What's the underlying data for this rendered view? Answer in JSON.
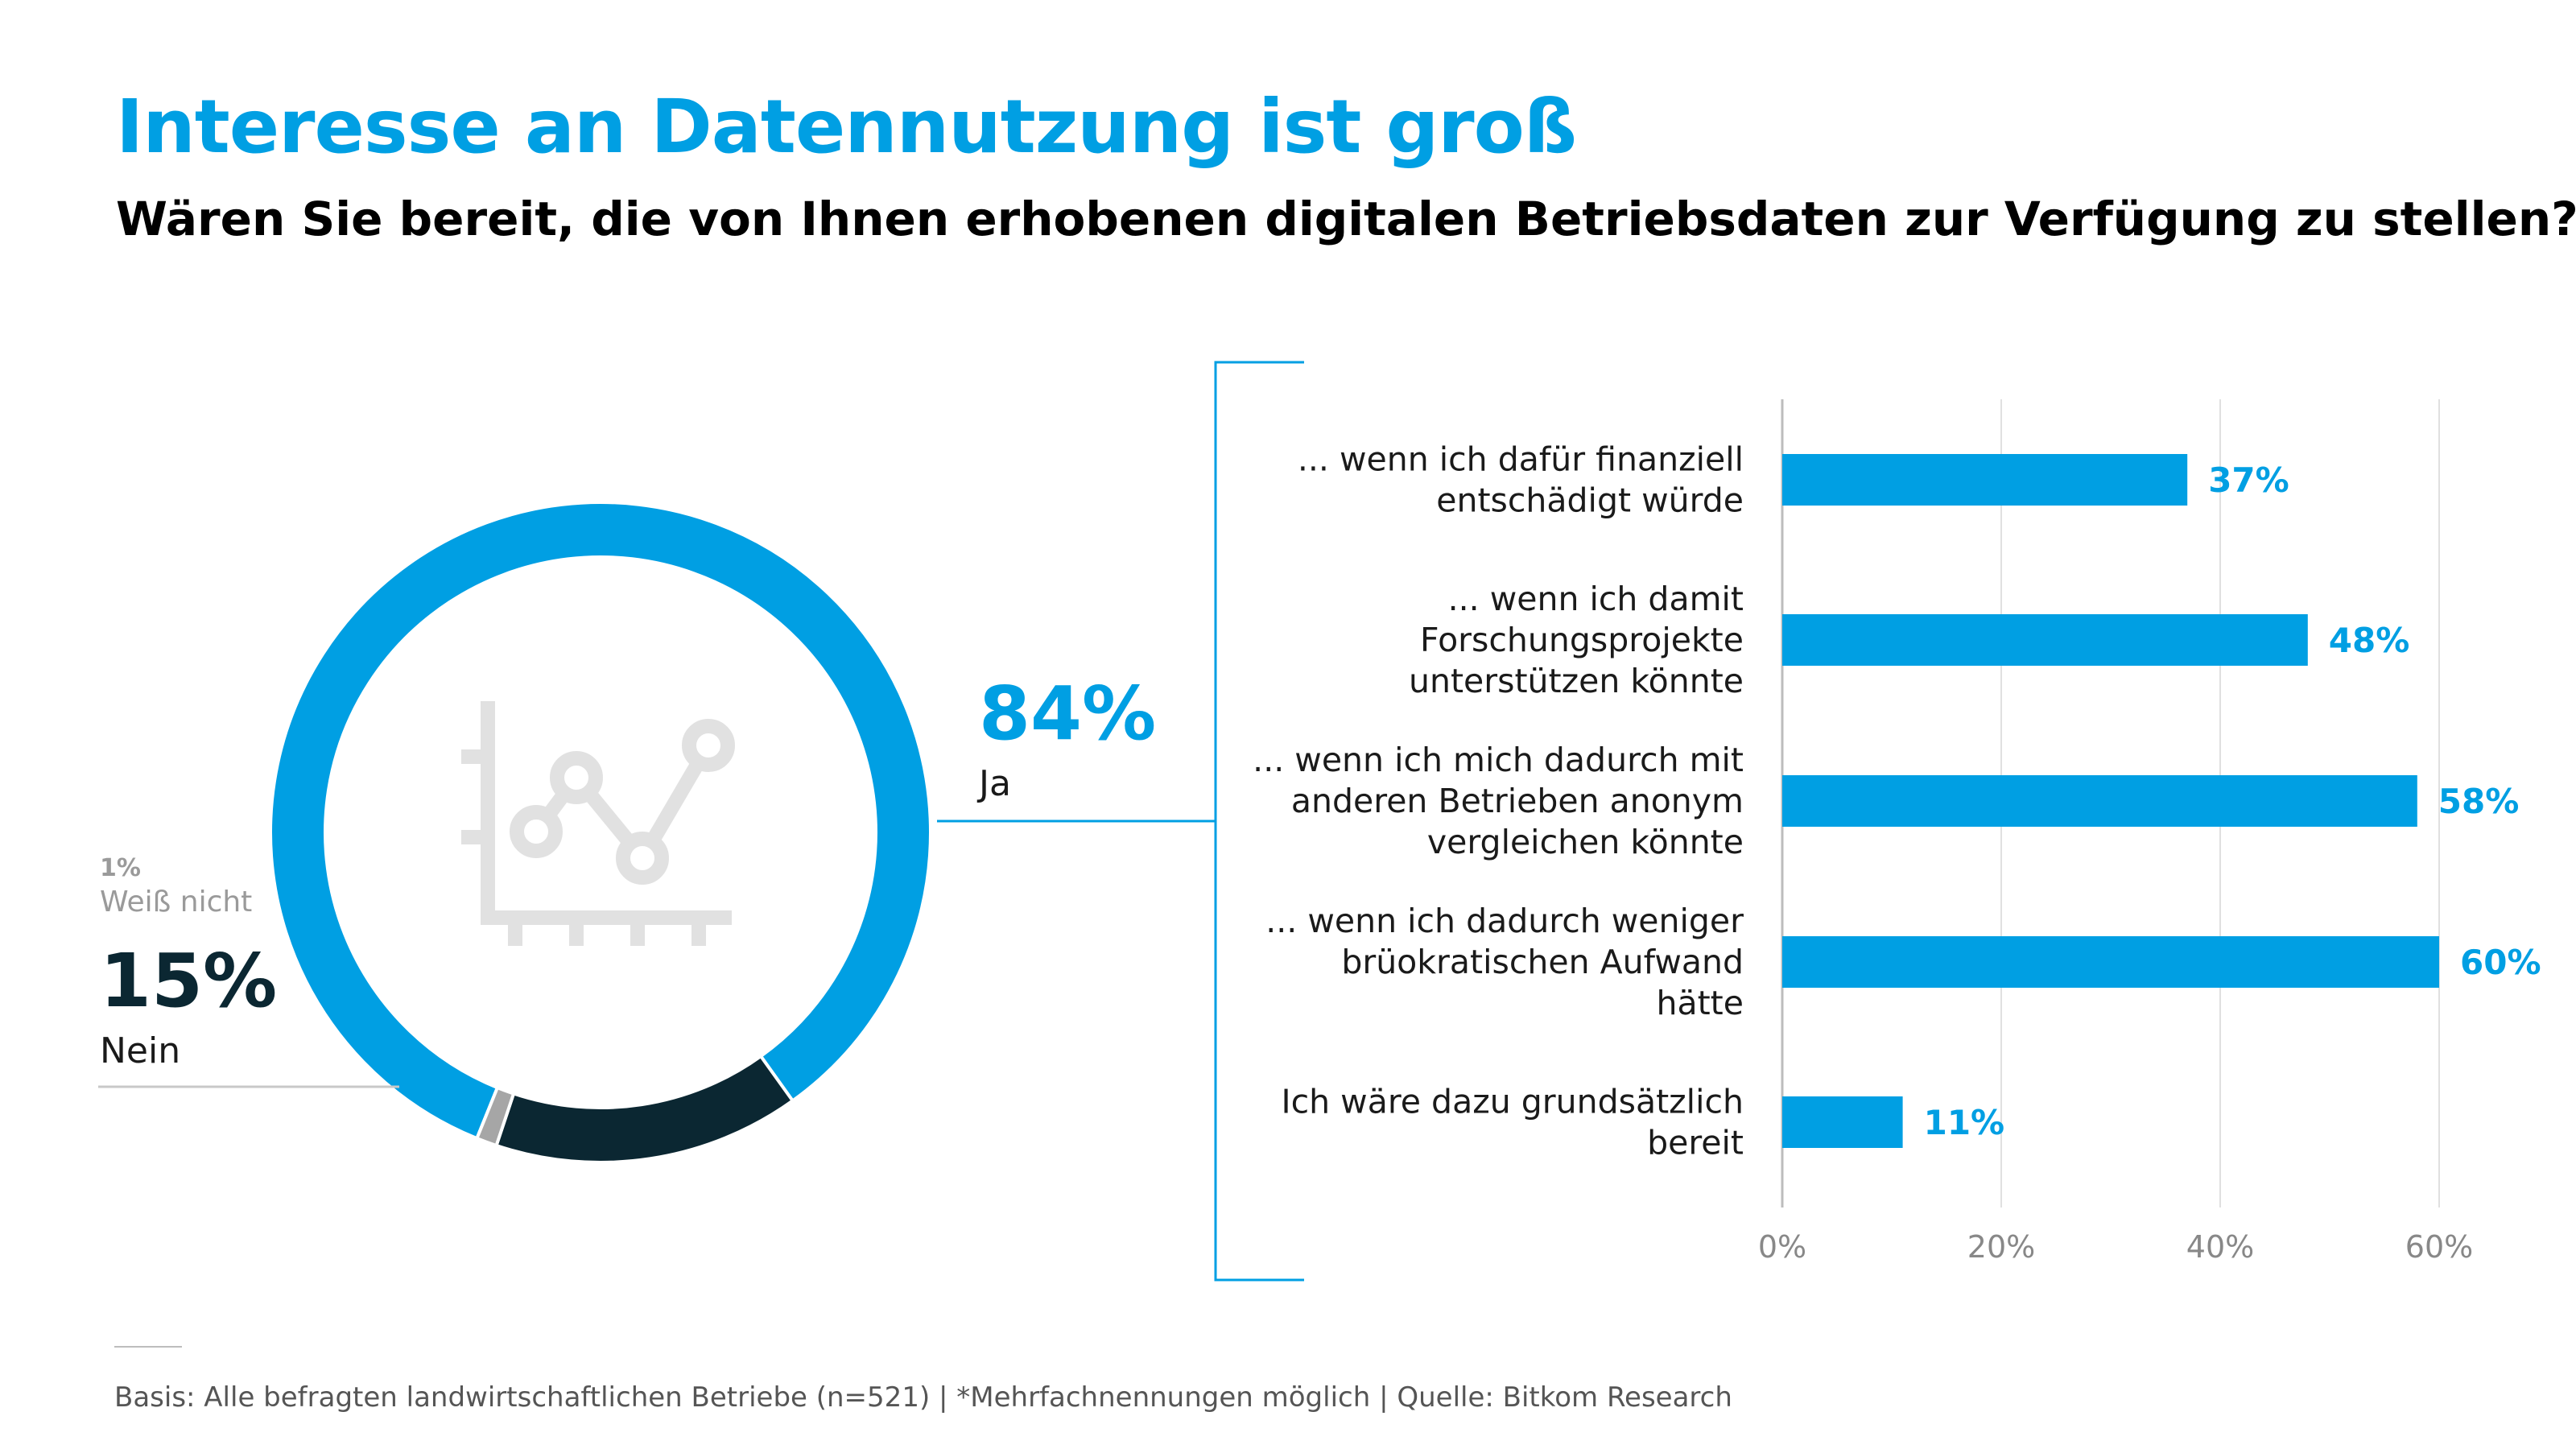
{
  "title": "Interesse an Datennutzung ist groß",
  "subtitle": "Wären Sie bereit, die von Ihnen erhobenen digitalen Betriebsdaten zur Verfügung zu stellen?*",
  "footer": "Basis: Alle befragten landwirtschaftlichen Betriebe (n=521) | *Mehrfachnennungen möglich | Quelle: Bitkom Research",
  "colors": {
    "accent": "#009fe3",
    "dark": "#0b2732",
    "grey": "#a6a6a6",
    "grid": "#e0e0e0"
  },
  "icon": "line-chart-icon",
  "chart_data": [
    {
      "type": "pie",
      "categories": [
        "Ja",
        "Nein",
        "Weiß nicht"
      ],
      "values": [
        84,
        15,
        1
      ],
      "labels": [
        "84%",
        "15%",
        "1%"
      ]
    },
    {
      "type": "bar",
      "orientation": "horizontal",
      "categories": [
        [
          "... wenn ich dafür finanziell",
          "entschädigt würde"
        ],
        [
          "... wenn ich damit",
          "Forschungsprojekte",
          "unterstützen könnte"
        ],
        [
          "... wenn ich mich dadurch mit",
          "anderen Betrieben anonym",
          "vergleichen könnte"
        ],
        [
          "... wenn ich dadurch weniger",
          "brüokratischen Aufwand",
          "hätte"
        ],
        [
          "Ich wäre dazu grundsätzlich",
          "bereit"
        ]
      ],
      "values": [
        37,
        48,
        58,
        60,
        11
      ],
      "value_labels": [
        "37%",
        "48%",
        "58%",
        "60%",
        "11%"
      ],
      "xlim": [
        0,
        65
      ],
      "ticks": [
        0,
        20,
        40,
        60
      ],
      "tick_labels": [
        "0%",
        "20%",
        "40%",
        "60%"
      ],
      "grid": true
    }
  ]
}
